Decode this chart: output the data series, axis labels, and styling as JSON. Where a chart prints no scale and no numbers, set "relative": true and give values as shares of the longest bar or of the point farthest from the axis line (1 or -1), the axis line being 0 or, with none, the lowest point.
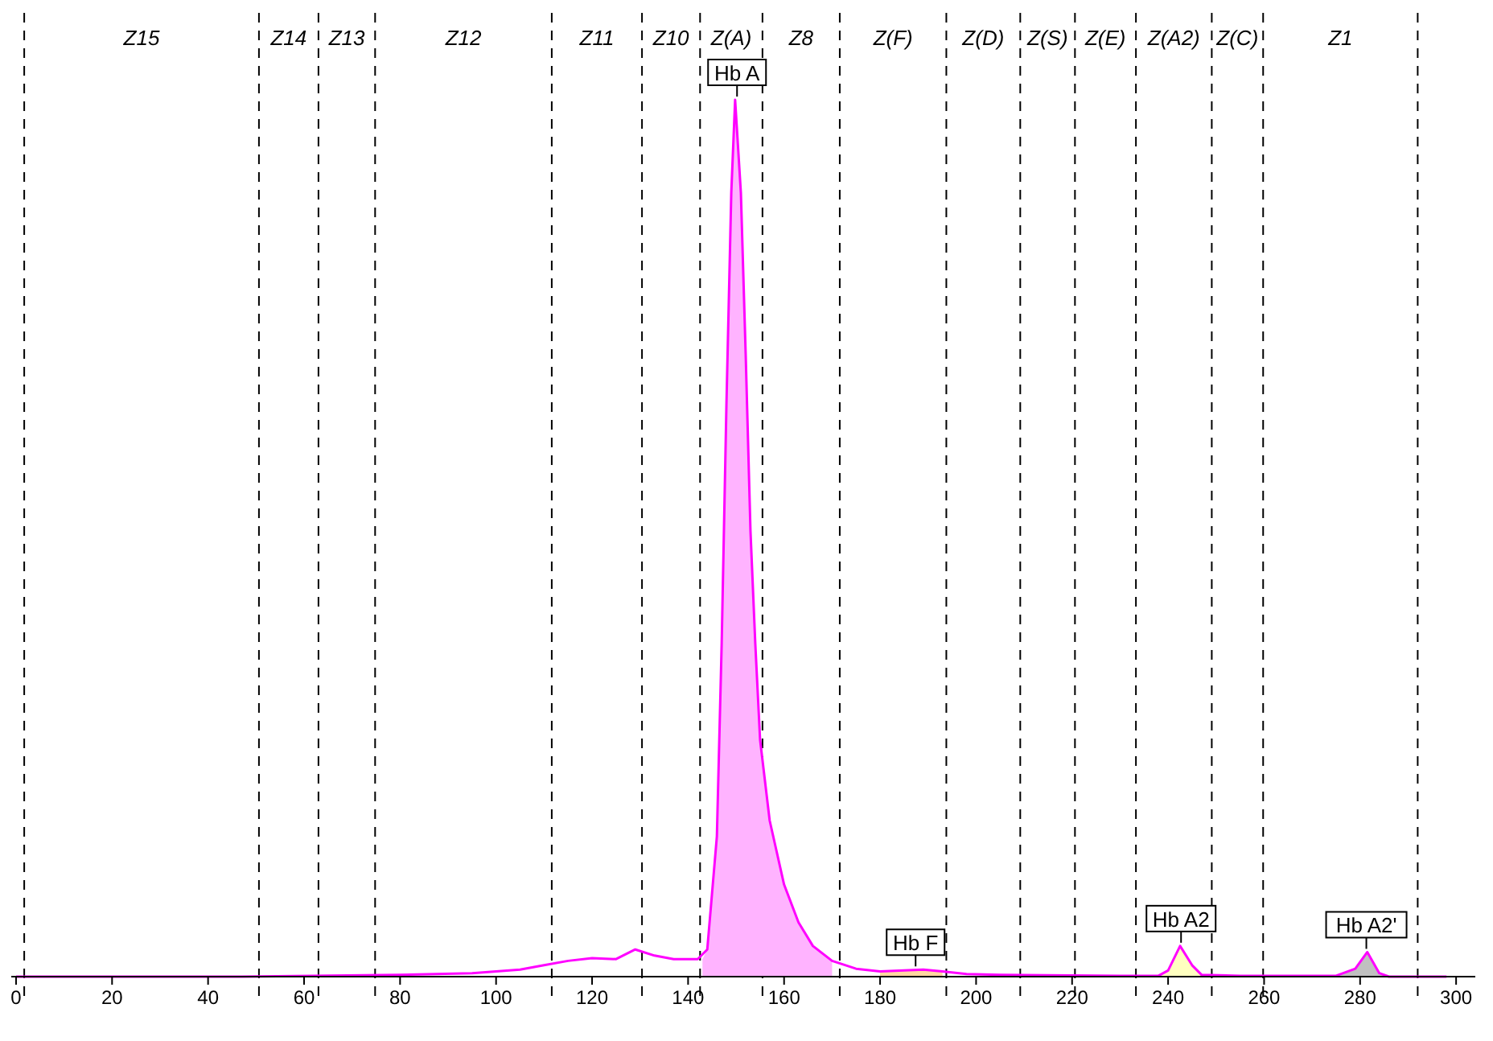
{
  "chart_data": {
    "type": "line",
    "relative": true,
    "xlim": [
      -1,
      304
    ],
    "xticks": [
      0,
      20,
      40,
      60,
      80,
      100,
      120,
      140,
      160,
      180,
      200,
      220,
      240,
      260,
      280,
      300
    ],
    "grid": false,
    "marker": "none",
    "line_style": "solid",
    "series": [
      {
        "type": "area",
        "color": "#ffb3ff",
        "x": [
          143,
          144,
          146,
          147,
          148,
          149,
          149.8,
          151,
          152,
          153,
          154,
          155,
          157,
          160,
          163,
          166,
          170
        ],
        "values": [
          0.02,
          0.031,
          0.16,
          0.38,
          0.655,
          0.894,
          1,
          0.894,
          0.71,
          0.508,
          0.38,
          0.27,
          0.178,
          0.105,
          0.062,
          0.035,
          0.018
        ]
      },
      {
        "type": "area",
        "color": "#ffd8a0",
        "x": [
          180,
          185,
          189,
          193
        ],
        "values": [
          0.006,
          0.007,
          0.008,
          0.006
        ]
      },
      {
        "type": "area",
        "color": "#ffffc0",
        "x": [
          238,
          240,
          242.5,
          245,
          247
        ],
        "values": [
          0.001,
          0.007,
          0.035,
          0.013,
          0.002
        ]
      },
      {
        "type": "area",
        "color": "#c0c0c0",
        "x": [
          275,
          279,
          281.5,
          284,
          286
        ],
        "values": [
          0.001,
          0.009,
          0.028,
          0.004,
          0
        ]
      },
      {
        "color": "#ff00ff",
        "x": [
          0,
          47,
          80,
          95,
          100,
          105,
          110,
          115,
          120,
          125,
          129,
          133,
          137,
          142,
          144,
          146,
          147,
          148,
          149,
          149.8,
          151,
          152,
          153,
          154,
          155,
          157,
          160,
          163,
          166,
          170,
          175,
          180,
          185,
          189,
          193,
          198,
          205,
          230,
          238,
          240,
          242.5,
          245,
          247,
          255,
          275,
          279,
          281.5,
          284,
          286,
          298
        ],
        "values": [
          0,
          0,
          0.002,
          0.004,
          0.006,
          0.008,
          0.013,
          0.018,
          0.021,
          0.02,
          0.031,
          0.024,
          0.02,
          0.02,
          0.031,
          0.16,
          0.38,
          0.655,
          0.894,
          1,
          0.894,
          0.71,
          0.508,
          0.38,
          0.27,
          0.178,
          0.105,
          0.062,
          0.035,
          0.018,
          0.009,
          0.006,
          0.007,
          0.008,
          0.006,
          0.003,
          0.002,
          0.001,
          0.001,
          0.007,
          0.035,
          0.013,
          0.002,
          0.001,
          0.001,
          0.009,
          0.028,
          0.004,
          0,
          0
        ]
      }
    ],
    "ref_lines": [
      {
        "axis": "x",
        "value": 1.7,
        "line_style": "dashed"
      },
      {
        "axis": "x",
        "value": 50.6,
        "line_style": "dashed"
      },
      {
        "axis": "x",
        "value": 63,
        "line_style": "dashed"
      },
      {
        "axis": "x",
        "value": 74.8,
        "line_style": "dashed"
      },
      {
        "axis": "x",
        "value": 111.6,
        "line_style": "dashed"
      },
      {
        "axis": "x",
        "value": 130.4,
        "line_style": "dashed"
      },
      {
        "axis": "x",
        "value": 142.5,
        "line_style": "dashed"
      },
      {
        "axis": "x",
        "value": 155.5,
        "line_style": "dashed"
      },
      {
        "axis": "x",
        "value": 171.6,
        "line_style": "dashed"
      },
      {
        "axis": "x",
        "value": 193.8,
        "line_style": "dashed"
      },
      {
        "axis": "x",
        "value": 209.2,
        "line_style": "dashed"
      },
      {
        "axis": "x",
        "value": 220.6,
        "line_style": "dashed"
      },
      {
        "axis": "x",
        "value": 233.3,
        "line_style": "dashed"
      },
      {
        "axis": "x",
        "value": 249.1,
        "line_style": "dashed"
      },
      {
        "axis": "x",
        "value": 259.8,
        "line_style": "dashed"
      },
      {
        "axis": "x",
        "value": 292,
        "line_style": "dashed"
      }
    ],
    "annotations": [
      "Z15",
      "Z14",
      "Z13",
      "Z12",
      "Z11",
      "Z10",
      "Z(A)",
      "Z8",
      "Z(F)",
      "Z(D)",
      "Z(S)",
      "Z(E)",
      "Z(A2)",
      "Z(C)",
      "Z1",
      {
        "text": "Hb A",
        "x": 150.2,
        "y": 1
      },
      {
        "text": "Hb F",
        "x": 187.4,
        "y": 0.008
      },
      {
        "text": "Hb A2",
        "x": 242.7,
        "y": 0.035
      },
      {
        "text": "Hb A2'",
        "x": 281.3,
        "y": 0.028
      }
    ]
  }
}
